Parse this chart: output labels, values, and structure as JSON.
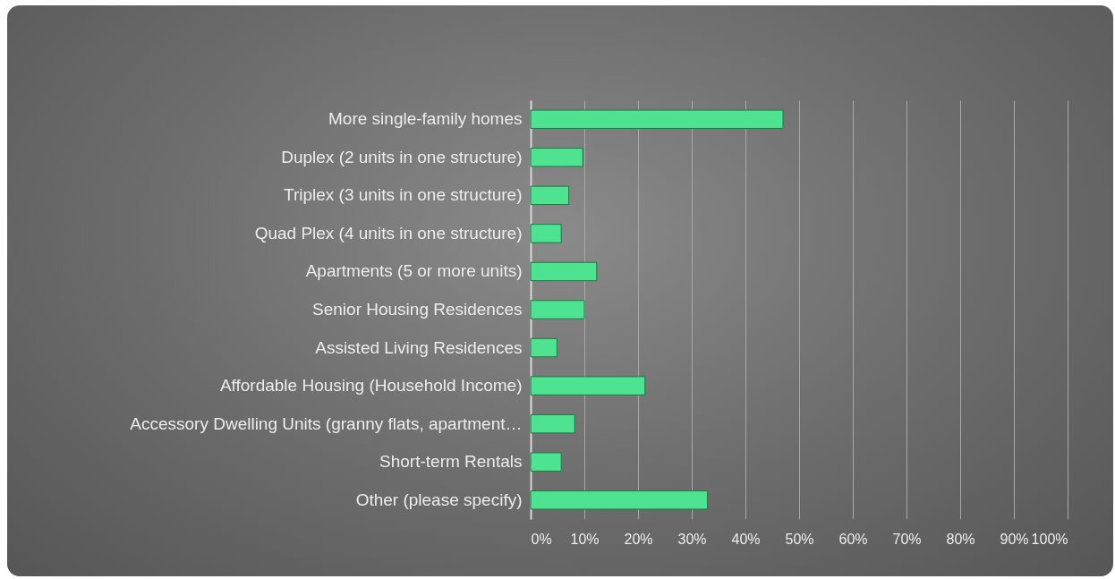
{
  "chart_data": {
    "type": "bar",
    "orientation": "horizontal",
    "categories": [
      "More single-family homes",
      "Duplex (2 units in one structure)",
      "Triplex (3 units in one structure)",
      "Quad Plex (4 units in one structure)",
      "Apartments (5 or more units)",
      "Senior Housing Residences",
      "Assisted Living Residences",
      "Affordable Housing (Household Income)",
      "Accessory Dwelling Units (granny flats, apartment…",
      "Short-term Rentals",
      "Other (please specify)"
    ],
    "values": [
      47,
      9.7,
      7.1,
      5.7,
      12.3,
      10,
      4.9,
      21.3,
      8.2,
      5.7,
      32.9
    ],
    "color": "#4ee391",
    "xlim": [
      0,
      100
    ],
    "xticks": [
      {
        "value": 0,
        "label": "0%"
      },
      {
        "value": 10,
        "label": "10%"
      },
      {
        "value": 20,
        "label": "20%"
      },
      {
        "value": 30,
        "label": "30%"
      },
      {
        "value": 40,
        "label": "40%"
      },
      {
        "value": 50,
        "label": "50%"
      },
      {
        "value": 60,
        "label": "60%"
      },
      {
        "value": 70,
        "label": "70%"
      },
      {
        "value": 80,
        "label": "80%"
      },
      {
        "value": 90,
        "label": "90%"
      },
      {
        "value": 100,
        "label": "100%"
      }
    ],
    "grid": "x"
  }
}
